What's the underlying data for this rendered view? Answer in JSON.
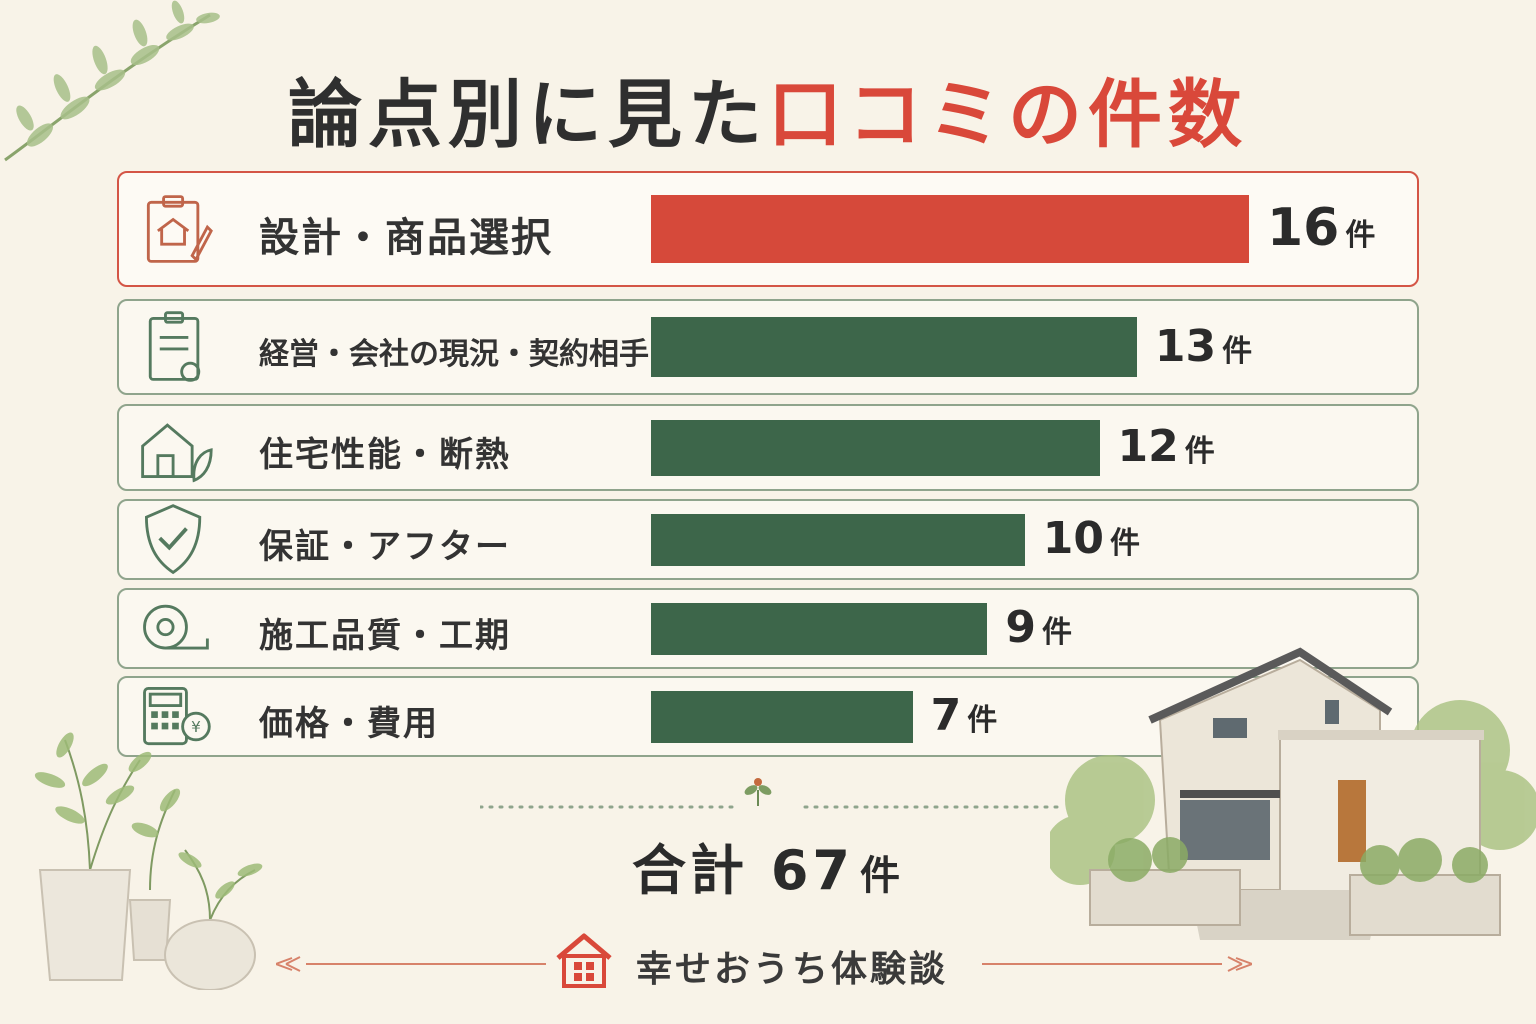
{
  "title": {
    "main": "論点別に見た",
    "accent": "口コミの件数"
  },
  "chart_data": {
    "type": "bar",
    "orientation": "horizontal",
    "categories": [
      "設計・商品選択",
      "経営・会社の現況・契約相手",
      "住宅性能・断熱",
      "保証・アフター",
      "施工品質・工期",
      "価格・費用"
    ],
    "values": [
      16,
      13,
      12,
      10,
      9,
      7
    ],
    "value_labels": [
      "16",
      "13",
      "12",
      "10",
      "9",
      "7"
    ],
    "unit": "件",
    "xlim": [
      0,
      16
    ],
    "highlight_index": 0,
    "colors": {
      "highlight": "#d6493a",
      "default": "#3d664a"
    },
    "icons": [
      "clipboard-house-pencil-icon",
      "document-clipboard-icon",
      "eco-house-icon",
      "shield-check-icon",
      "tape-measure-icon",
      "calculator-yen-icon"
    ]
  },
  "total": {
    "label": "合計",
    "value": "67",
    "unit": "件"
  },
  "brand": {
    "name": "幸せおうち体験談",
    "icon": "house-logo-icon"
  }
}
